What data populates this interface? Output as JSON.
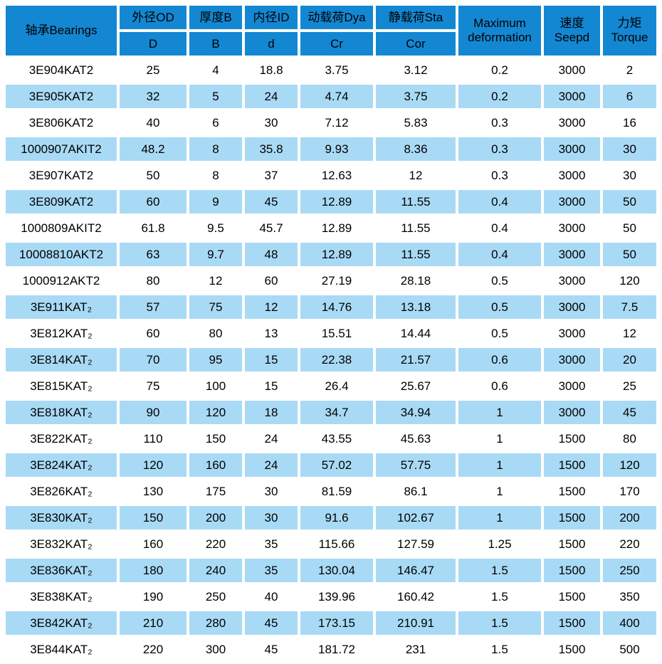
{
  "chart_data": {
    "type": "table",
    "header": {
      "bearings": "轴承Bearings",
      "groups": [
        {
          "label": "外径OD",
          "symbol": "D"
        },
        {
          "label": "厚度B",
          "symbol": "B"
        },
        {
          "label": "内径ID",
          "symbol": "d"
        },
        {
          "label": "动载荷Dya",
          "symbol": "Cr"
        },
        {
          "label": "静载荷Sta",
          "symbol": "Cor"
        }
      ],
      "max_deformation": "Maximum deformation",
      "speed": {
        "zh": "速度",
        "en": "Seepd"
      },
      "torque": {
        "zh": "力矩",
        "en": "Torque"
      }
    },
    "columns": [
      "轴承Bearings",
      "外径OD D",
      "厚度B B",
      "内径ID d",
      "动载荷Dya Cr",
      "静载荷Sta Cor",
      "Maximum deformation",
      "速度 Seepd",
      "力矩 Torque"
    ],
    "rows": [
      [
        "3E904KAT2",
        25,
        4,
        18.8,
        3.75,
        3.12,
        0.2,
        3000,
        2
      ],
      [
        "3E905KAT2",
        32,
        5,
        24,
        4.74,
        3.75,
        0.2,
        3000,
        6
      ],
      [
        "3E806KAT2",
        40,
        6,
        30,
        7.12,
        5.83,
        0.3,
        3000,
        16
      ],
      [
        "1000907AKIT2",
        48.2,
        8,
        35.8,
        9.93,
        8.36,
        0.3,
        3000,
        30
      ],
      [
        "3E907KAT2",
        50,
        8,
        37,
        12.63,
        12,
        0.3,
        3000,
        30
      ],
      [
        "3E809KAT2",
        60,
        9,
        45,
        12.89,
        11.55,
        0.4,
        3000,
        50
      ],
      [
        "1000809AKIT2",
        61.8,
        9.5,
        45.7,
        12.89,
        11.55,
        0.4,
        3000,
        50
      ],
      [
        "10008810AKT2",
        63,
        9.7,
        48,
        12.89,
        11.55,
        0.4,
        3000,
        50
      ],
      [
        "1000912AKT2",
        80,
        12,
        60,
        27.19,
        28.18,
        0.5,
        3000,
        120
      ],
      [
        "3E911KAT₂",
        57,
        75,
        12,
        14.76,
        13.18,
        0.5,
        3000,
        7.5
      ],
      [
        "3E812KAT₂",
        60,
        80,
        13,
        15.51,
        14.44,
        0.5,
        3000,
        12
      ],
      [
        "3E814KAT₂",
        70,
        95,
        15,
        22.38,
        21.57,
        0.6,
        3000,
        20
      ],
      [
        "3E815KAT₂",
        75,
        100,
        15,
        26.4,
        25.67,
        0.6,
        3000,
        25
      ],
      [
        "3E818KAT₂",
        90,
        120,
        18,
        34.7,
        34.94,
        1,
        3000,
        45
      ],
      [
        "3E822KAT₂",
        110,
        150,
        24,
        43.55,
        45.63,
        1,
        1500,
        80
      ],
      [
        "3E824KAT₂",
        120,
        160,
        24,
        57.02,
        57.75,
        1,
        1500,
        120
      ],
      [
        "3E826KAT₂",
        130,
        175,
        30,
        81.59,
        86.1,
        1,
        1500,
        170
      ],
      [
        "3E830KAT₂",
        150,
        200,
        30,
        91.6,
        102.67,
        1,
        1500,
        200
      ],
      [
        "3E832KAT₂",
        160,
        220,
        35,
        115.66,
        127.59,
        1.25,
        1500,
        220
      ],
      [
        "3E836KAT₂",
        180,
        240,
        35,
        130.04,
        146.47,
        1.5,
        1500,
        250
      ],
      [
        "3E838KAT₂",
        190,
        250,
        40,
        139.96,
        160.42,
        1.5,
        1500,
        350
      ],
      [
        "3E842KAT₂",
        210,
        280,
        45,
        173.15,
        210.91,
        1.5,
        1500,
        400
      ],
      [
        "3E844KAT₂",
        220,
        300,
        45,
        181.72,
        231,
        1.5,
        1500,
        500
      ]
    ]
  },
  "colors": {
    "header_blue": "#1487d2",
    "row_highlight": "#a9daf5",
    "row_plain": "#ffffff",
    "text": "#000000"
  }
}
